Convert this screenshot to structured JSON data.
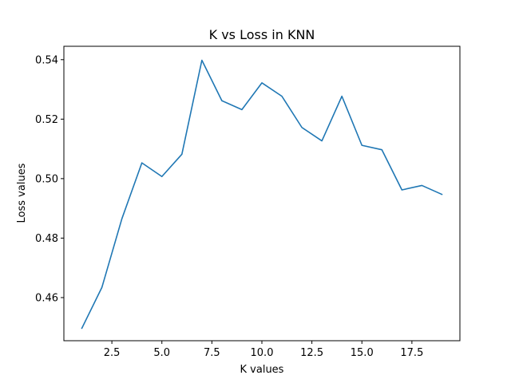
{
  "chart_data": {
    "type": "line",
    "title": "K vs Loss in KNN",
    "xlabel": "K values",
    "ylabel": "Loss values",
    "xlim": [
      0.1,
      19.9
    ],
    "ylim": [
      0.4455,
      0.5445
    ],
    "xticks": [
      2.5,
      5.0,
      7.5,
      10.0,
      12.5,
      15.0,
      17.5
    ],
    "xtick_labels": [
      "2.5",
      "5.0",
      "7.5",
      "10.0",
      "12.5",
      "15.0",
      "17.5"
    ],
    "yticks": [
      0.46,
      0.48,
      0.5,
      0.52,
      0.54
    ],
    "ytick_labels": [
      "0.46",
      "0.48",
      "0.50",
      "0.52",
      "0.54"
    ],
    "grid": false,
    "series": [
      {
        "color": "#1f77b4",
        "x": [
          1,
          2,
          3,
          4,
          5,
          6,
          7,
          8,
          9,
          10,
          11,
          12,
          13,
          14,
          15,
          16,
          17,
          18,
          19
        ],
        "y": [
          0.4497,
          0.4634,
          0.4865,
          0.5053,
          0.5007,
          0.5082,
          0.5398,
          0.5262,
          0.5232,
          0.5322,
          0.5277,
          0.5172,
          0.5127,
          0.5277,
          0.5112,
          0.5097,
          0.4962,
          0.4977,
          0.4947
        ]
      }
    ]
  }
}
